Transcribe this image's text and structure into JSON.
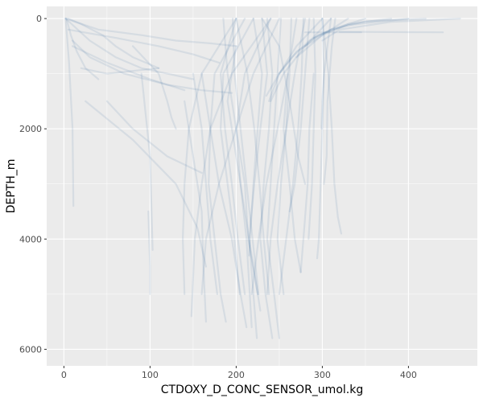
{
  "chart_data": {
    "type": "line",
    "title": "",
    "xlabel": "CTDOXY_D_CONC_SENSOR_umol.kg",
    "ylabel": "DEPTH_m",
    "xlim": [
      -20,
      480
    ],
    "ylim": [
      6300,
      -220
    ],
    "y_reversed": true,
    "x_ticks": [
      0,
      100,
      200,
      300,
      400
    ],
    "x_tick_labels": [
      "0",
      "100",
      "200",
      "300",
      "400"
    ],
    "y_ticks": [
      0,
      2000,
      4000,
      6000
    ],
    "y_tick_labels": [
      "0",
      "2000",
      "4000",
      "6000"
    ],
    "grid": true,
    "legend": "none",
    "colors": {
      "panel_background": "#ebebeb",
      "grid_major": "#ffffff",
      "series": "#1f5a96"
    },
    "series_alpha": 0.1,
    "series": [
      {
        "x": [
          230,
          236,
          228,
          221,
          215,
          220,
          224
        ],
        "y": [
          0,
          1000,
          2000,
          3000,
          4000,
          5000,
          5800
        ]
      },
      {
        "x": [
          236,
          242,
          238,
          232,
          228,
          234,
          242
        ],
        "y": [
          0,
          1000,
          2000,
          3000,
          4000,
          5000,
          5800
        ]
      },
      {
        "x": [
          252,
          248,
          244,
          240,
          236,
          244,
          250
        ],
        "y": [
          0,
          1000,
          2000,
          3000,
          4000,
          5000,
          5800
        ]
      },
      {
        "x": [
          264,
          262,
          258,
          252,
          248,
          255
        ],
        "y": [
          0,
          1000,
          2000,
          3000,
          4000,
          5000
        ]
      },
      {
        "x": [
          278,
          276,
          272,
          266,
          258,
          250
        ],
        "y": [
          0,
          1000,
          2000,
          3000,
          4000,
          5000
        ]
      },
      {
        "x": [
          290,
          292,
          290,
          288,
          284
        ],
        "y": [
          0,
          1000,
          2000,
          3000,
          4000
        ]
      },
      {
        "x": [
          300,
          302,
          300,
          298,
          296,
          294
        ],
        "y": [
          0,
          1000,
          2000,
          3000,
          4000,
          4350
        ]
      },
      {
        "x": [
          310,
          306,
          302,
          300,
          299
        ],
        "y": [
          0,
          500,
          1000,
          1500,
          2000
        ]
      },
      {
        "x": [
          315,
          311,
          306,
          305,
          302
        ],
        "y": [
          0,
          500,
          1500,
          2500,
          3000
        ]
      },
      {
        "x": [
          300,
          307,
          311,
          314,
          318,
          322
        ],
        "y": [
          0,
          1000,
          2000,
          3000,
          3600,
          3900
        ]
      },
      {
        "x": [
          200,
          213,
          221,
          227,
          232,
          238
        ],
        "y": [
          0,
          1000,
          2000,
          3000,
          4000,
          5000
        ]
      },
      {
        "x": [
          196,
          198,
          205,
          212,
          219,
          226
        ],
        "y": [
          0,
          1000,
          2000,
          3000,
          4000,
          5000
        ]
      },
      {
        "x": [
          185,
          190,
          200,
          210,
          214,
          225
        ],
        "y": [
          0,
          1000,
          2000,
          3000,
          4000,
          5000
        ]
      },
      {
        "x": [
          200,
          182,
          187,
          195,
          202,
          210
        ],
        "y": [
          0,
          1000,
          2000,
          3000,
          4000,
          5000
        ]
      },
      {
        "x": [
          220,
          185,
          182,
          190,
          198,
          204
        ],
        "y": [
          0,
          1000,
          2000,
          3000,
          4000,
          5000
        ]
      },
      {
        "x": [
          210,
          175,
          170,
          168,
          175,
          182,
          188
        ],
        "y": [
          0,
          1000,
          2000,
          3000,
          4000,
          5000,
          5500
        ]
      },
      {
        "x": [
          240,
          195,
          170,
          160,
          152,
          148
        ],
        "y": [
          0,
          1000,
          2000,
          3000,
          4000,
          5400
        ]
      },
      {
        "x": [
          200,
          160,
          145,
          140,
          138,
          140
        ],
        "y": [
          0,
          1000,
          2000,
          3000,
          4000,
          5000
        ]
      },
      {
        "x": [
          250,
          220,
          200,
          180,
          165,
          160
        ],
        "y": [
          0,
          1000,
          2000,
          3000,
          4000,
          5000
        ]
      },
      {
        "x": [
          270,
          260,
          248,
          235,
          226,
          218
        ],
        "y": [
          0,
          1000,
          2000,
          3000,
          4000,
          5000
        ]
      },
      {
        "x": [
          280,
          268,
          258,
          248,
          240,
          236
        ],
        "y": [
          0,
          1000,
          2000,
          3000,
          4000,
          5000
        ]
      },
      {
        "x": [
          285,
          280,
          275,
          268,
          262
        ],
        "y": [
          0,
          1000,
          2000,
          3000,
          3500
        ]
      },
      {
        "x": [
          230,
          250,
          262,
          272,
          280
        ],
        "y": [
          0,
          500,
          1500,
          2500,
          3000
        ]
      },
      {
        "x": [
          240,
          210,
          200,
          205,
          212,
          218
        ],
        "y": [
          0,
          1000,
          2000,
          3000,
          4000,
          5600
        ]
      },
      {
        "x": [
          220,
          230,
          225,
          220,
          215
        ],
        "y": [
          0,
          1000,
          2000,
          3000,
          4300
        ]
      },
      {
        "x": [
          300,
          270,
          250,
          238
        ],
        "y": [
          0,
          500,
          1000,
          1500
        ]
      },
      {
        "x": [
          310,
          280,
          255,
          240
        ],
        "y": [
          0,
          500,
          1000,
          1500
        ]
      },
      {
        "x": [
          330,
          300,
          270,
          250,
          235
        ],
        "y": [
          0,
          300,
          600,
          1000,
          1400
        ]
      },
      {
        "x": [
          350,
          310,
          285,
          265,
          250
        ],
        "y": [
          0,
          200,
          400,
          700,
          1000
        ]
      },
      {
        "x": [
          400,
          330,
          295,
          280
        ],
        "y": [
          0,
          120,
          300,
          500
        ]
      },
      {
        "x": [
          460,
          380,
          320,
          300
        ],
        "y": [
          0,
          60,
          200,
          400
        ]
      },
      {
        "x": [
          420,
          350,
          310,
          290
        ],
        "y": [
          0,
          50,
          200,
          350
        ]
      },
      {
        "x": [
          380,
          330,
          300,
          285,
          270
        ],
        "y": [
          0,
          100,
          300,
          500,
          700
        ]
      },
      {
        "x": [
          280,
          300,
          320,
          345
        ],
        "y": [
          250,
          250,
          250,
          250
        ]
      },
      {
        "x": [
          320,
          380,
          440
        ],
        "y": [
          240,
          245,
          250
        ]
      },
      {
        "x": [
          5,
          20,
          45,
          60,
          80,
          110
        ],
        "y": [
          0,
          100,
          300,
          500,
          700,
          900
        ]
      },
      {
        "x": [
          3,
          8,
          15,
          25,
          40
        ],
        "y": [
          0,
          300,
          600,
          900,
          1100
        ]
      },
      {
        "x": [
          2,
          6,
          10,
          11
        ],
        "y": [
          0,
          800,
          2000,
          3400
        ]
      },
      {
        "x": [
          2,
          30,
          60,
          90,
          120,
          150
        ],
        "y": [
          0,
          400,
          700,
          900,
          1000,
          1100
        ]
      },
      {
        "x": [
          10,
          30,
          70,
          120,
          160,
          195
        ],
        "y": [
          400,
          700,
          1000,
          1200,
          1300,
          1350
        ]
      },
      {
        "x": [
          20,
          50,
          80,
          110
        ],
        "y": [
          900,
          1000,
          950,
          900
        ]
      },
      {
        "x": [
          50,
          80,
          120,
          160
        ],
        "y": [
          1500,
          2000,
          2500,
          2800
        ]
      },
      {
        "x": [
          25,
          80,
          130,
          155,
          165
        ],
        "y": [
          1500,
          2200,
          3000,
          3800,
          4500
        ]
      },
      {
        "x": [
          90,
          100,
          103
        ],
        "y": [
          1000,
          2500,
          4200
        ]
      },
      {
        "x": [
          98,
          100,
          100
        ],
        "y": [
          3500,
          4500,
          5000
        ]
      },
      {
        "x": [
          2,
          40,
          90,
          130,
          170,
          200
        ],
        "y": [
          0,
          200,
          300,
          400,
          450,
          500
        ]
      },
      {
        "x": [
          5,
          60,
          110,
          150,
          180
        ],
        "y": [
          200,
          350,
          500,
          650,
          800
        ]
      },
      {
        "x": [
          10,
          50,
          100,
          140
        ],
        "y": [
          500,
          800,
          1100,
          1300
        ]
      },
      {
        "x": [
          80,
          110,
          120,
          125,
          130
        ],
        "y": [
          500,
          1000,
          1500,
          1800,
          2000
        ]
      },
      {
        "x": [
          150,
          160,
          165,
          170,
          178
        ],
        "y": [
          1000,
          2000,
          3000,
          4000,
          5000
        ]
      },
      {
        "x": [
          160,
          170,
          180,
          195,
          205,
          212
        ],
        "y": [
          1000,
          2000,
          3000,
          4000,
          5000,
          5600
        ]
      },
      {
        "x": [
          140,
          150,
          160,
          162,
          165
        ],
        "y": [
          1500,
          2500,
          3500,
          4500,
          5500
        ]
      },
      {
        "x": [
          200,
          190,
          200,
          210,
          220,
          228
        ],
        "y": [
          500,
          1500,
          2500,
          3500,
          4500,
          5300
        ]
      },
      {
        "x": [
          260,
          255,
          262,
          268,
          275
        ],
        "y": [
          1000,
          2000,
          3000,
          4000,
          4600
        ]
      },
      {
        "x": [
          290,
          285,
          283,
          278,
          275
        ],
        "y": [
          1000,
          2000,
          3000,
          4000,
          4600
        ]
      }
    ]
  }
}
